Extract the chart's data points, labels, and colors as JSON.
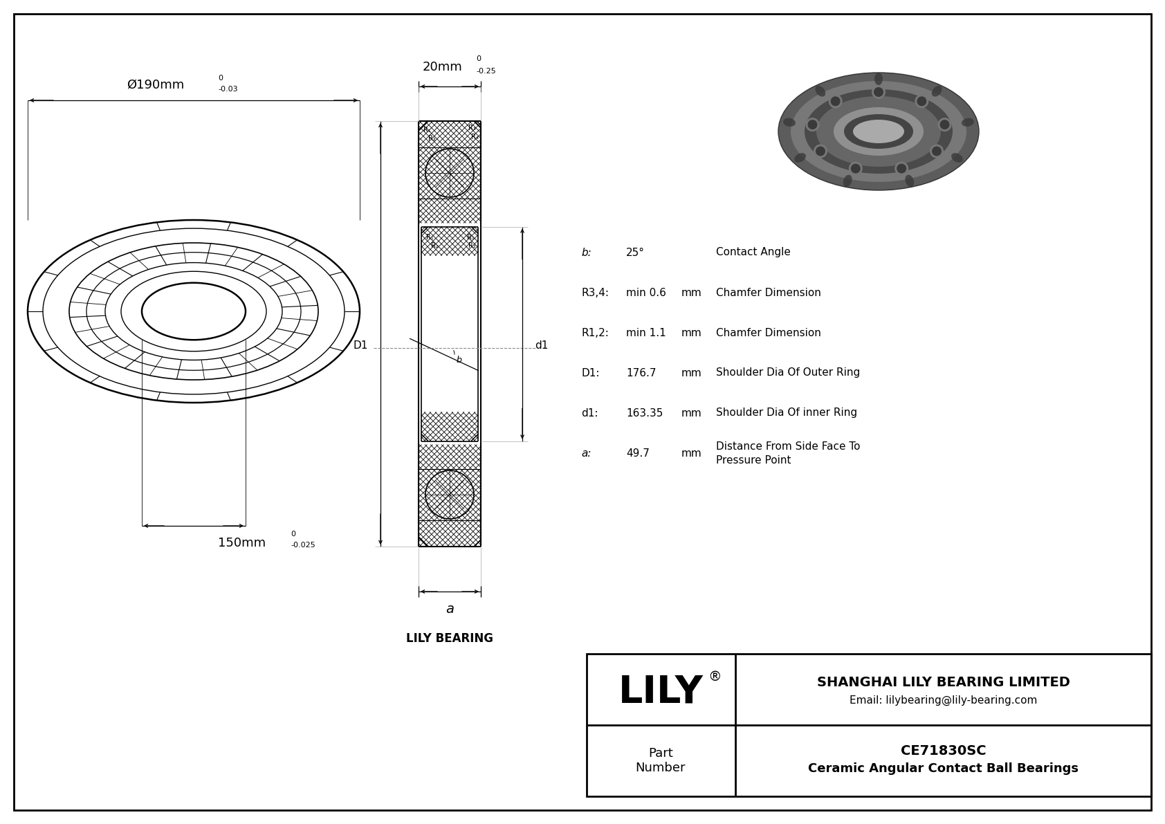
{
  "bg_color": "#ffffff",
  "specs": [
    {
      "label": "b:",
      "value": "25°",
      "unit": "",
      "desc": "Contact Angle"
    },
    {
      "label": "R3,4:",
      "value": "min 0.6",
      "unit": "mm",
      "desc": "Chamfer Dimension"
    },
    {
      "label": "R1,2:",
      "value": "min 1.1",
      "unit": "mm",
      "desc": "Chamfer Dimension"
    },
    {
      "label": "D1:",
      "value": "176.7",
      "unit": "mm",
      "desc": "Shoulder Dia Of Outer Ring"
    },
    {
      "label": "d1:",
      "value": "163.35",
      "unit": "mm",
      "desc": "Shoulder Dia Of inner Ring"
    },
    {
      "label": "a:",
      "value": "49.7",
      "unit": "mm",
      "desc": "Distance From Side Face To\nPressure Point"
    }
  ],
  "company_name": "LILY",
  "company_reg": "®",
  "company_full": "SHANGHAI LILY BEARING LIMITED",
  "company_email": "Email: lilybearing@lily-bearing.com",
  "part_label": "Part\nNumber",
  "part_number": "CE71830SC",
  "part_desc": "Ceramic Angular Contact Ball Bearings",
  "lily_bearing_label": "LILY BEARING",
  "outer_dia_text": "Ø190mm",
  "outer_tol_top": "0",
  "outer_tol_bot": "-0.03",
  "inner_dia_text": "150mm",
  "inner_tol_top": "0",
  "inner_tol_bot": "-0.025",
  "width_text": "20mm",
  "width_tol_top": "0",
  "width_tol_bot": "-0.25",
  "dim_a_label": "a"
}
